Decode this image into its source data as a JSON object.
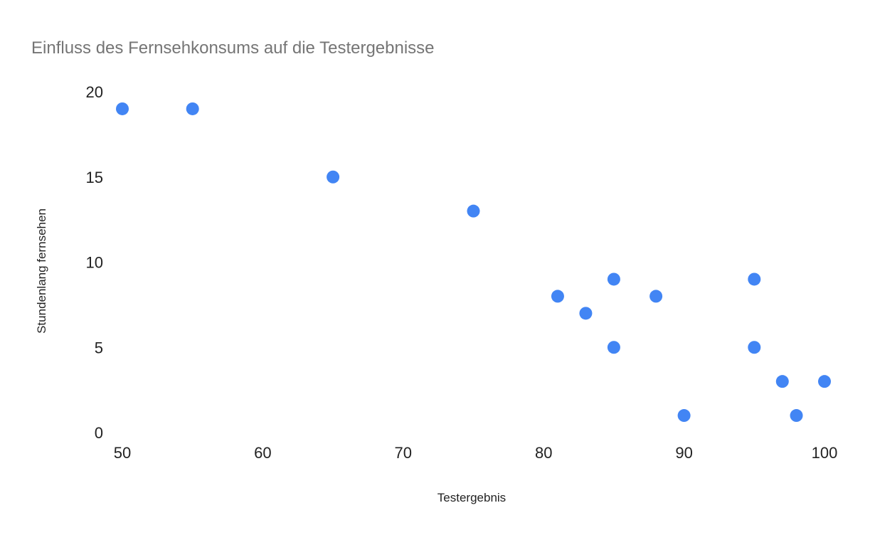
{
  "chart_data": {
    "type": "scatter",
    "title": "Einfluss des Fernsehkonsums auf die Testergebnisse",
    "xlabel": "Testergebnis",
    "ylabel": "Stundenlang fernsehen",
    "xlim": [
      50,
      100
    ],
    "ylim": [
      0,
      20
    ],
    "xticks": [
      50,
      60,
      70,
      80,
      90,
      100
    ],
    "yticks": [
      0,
      5,
      10,
      15,
      20
    ],
    "grid": false,
    "legend": "none",
    "color": "#4285F4",
    "points": [
      {
        "x": 50,
        "y": 19
      },
      {
        "x": 55,
        "y": 19
      },
      {
        "x": 65,
        "y": 15
      },
      {
        "x": 75,
        "y": 13
      },
      {
        "x": 81,
        "y": 8
      },
      {
        "x": 83,
        "y": 7
      },
      {
        "x": 85,
        "y": 9
      },
      {
        "x": 85,
        "y": 5
      },
      {
        "x": 88,
        "y": 8
      },
      {
        "x": 90,
        "y": 1
      },
      {
        "x": 95,
        "y": 9
      },
      {
        "x": 95,
        "y": 5
      },
      {
        "x": 97,
        "y": 3
      },
      {
        "x": 98,
        "y": 1
      },
      {
        "x": 100,
        "y": 3
      }
    ]
  }
}
